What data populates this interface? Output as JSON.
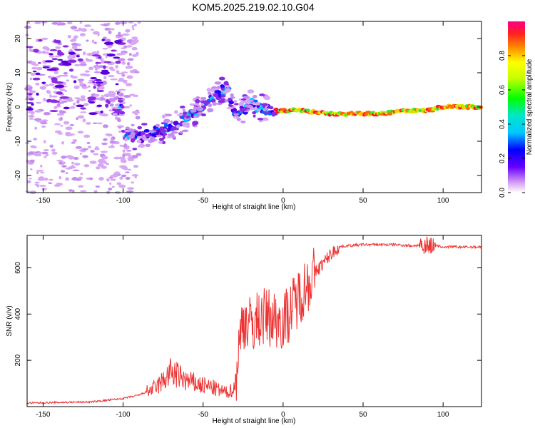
{
  "title": "KOM5.2025.219.02.10.G04",
  "chart_data": [
    {
      "type": "heatmap",
      "xlabel": "Height of straight line (km)",
      "ylabel": "Frequency (Hz)",
      "xlim": [
        -160,
        124
      ],
      "ylim": [
        -25,
        25
      ],
      "xticks": [
        -150,
        -100,
        -50,
        0,
        50,
        100
      ],
      "yticks": [
        -20,
        -10,
        0,
        10,
        20
      ],
      "colorbar": {
        "label": "Normalized spectral amplitude",
        "range": [
          0,
          1
        ],
        "ticks": [
          "0.0",
          "0.2",
          "0.4",
          "0.6",
          "0.8"
        ]
      },
      "ridge": {
        "x": [
          -100,
          -90,
          -80,
          -70,
          -60,
          -50,
          -40,
          -35,
          -30,
          -25,
          -20,
          -10,
          0,
          10,
          20,
          30,
          40,
          50,
          60,
          70,
          80,
          90,
          100,
          110,
          124
        ],
        "y": [
          -8,
          -9,
          -7,
          -6,
          -3,
          0,
          4,
          6,
          -2,
          -1,
          1,
          -1,
          -1,
          -1,
          -1.5,
          -2,
          -2,
          -2,
          -2,
          -1.5,
          -1,
          -1,
          0,
          0,
          0
        ]
      }
    },
    {
      "type": "line",
      "xlabel": "Height of straight line (km)",
      "ylabel": "SNR (v/v)",
      "xlim": [
        -160,
        124
      ],
      "ylim": [
        0,
        740
      ],
      "xticks": [
        -150,
        -100,
        -50,
        0,
        50,
        100
      ],
      "yticks": [
        200,
        400,
        600
      ],
      "color": "#ee3333",
      "series": [
        {
          "name": "SNR",
          "x": [
            -160,
            -140,
            -120,
            -100,
            -90,
            -80,
            -75,
            -70,
            -65,
            -60,
            -55,
            -50,
            -45,
            -40,
            -35,
            -30,
            -28,
            -25,
            -20,
            -15,
            -10,
            -5,
            0,
            5,
            10,
            15,
            20,
            25,
            30,
            35,
            40,
            50,
            60,
            70,
            80,
            90,
            100,
            110,
            124
          ],
          "values": [
            15,
            18,
            20,
            35,
            50,
            80,
            110,
            150,
            130,
            110,
            100,
            90,
            85,
            70,
            60,
            80,
            240,
            380,
            350,
            380,
            390,
            380,
            370,
            420,
            480,
            530,
            580,
            620,
            660,
            690,
            695,
            700,
            700,
            700,
            695,
            700,
            690,
            690,
            690
          ]
        }
      ]
    }
  ]
}
